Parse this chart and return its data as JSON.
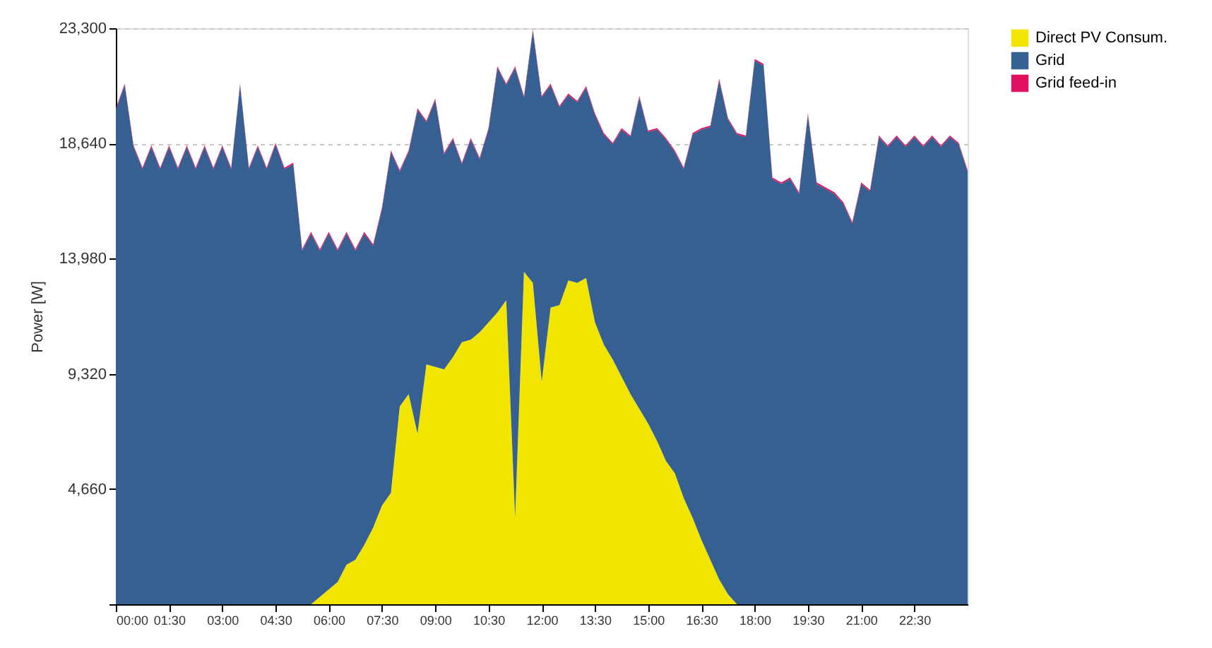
{
  "chart_data": {
    "type": "area",
    "stacked": true,
    "ylabel": "Power [W]",
    "x": [
      0,
      0.25,
      0.5,
      0.75,
      1,
      1.25,
      1.5,
      1.75,
      2,
      2.25,
      2.5,
      2.75,
      3,
      3.25,
      3.5,
      3.75,
      4,
      4.25,
      4.5,
      4.75,
      5,
      5.25,
      5.5,
      5.75,
      6,
      6.25,
      6.5,
      6.75,
      7,
      7.25,
      7.5,
      7.75,
      8,
      8.25,
      8.5,
      8.75,
      9,
      9.25,
      9.5,
      9.75,
      10,
      10.25,
      10.5,
      10.75,
      11,
      11.25,
      11.5,
      11.75,
      12,
      12.25,
      12.5,
      12.75,
      13,
      13.25,
      13.5,
      13.75,
      14,
      14.25,
      14.5,
      14.75,
      15,
      15.25,
      15.5,
      15.75,
      16,
      16.25,
      16.5,
      16.75,
      17,
      17.25,
      17.5,
      17.75,
      18,
      18.25,
      18.5,
      18.75,
      19,
      19.25,
      19.5,
      19.75,
      20,
      20.25,
      20.5,
      20.75,
      21,
      21.25,
      21.5,
      21.75,
      22,
      22.25,
      22.5,
      22.75,
      23,
      23.25,
      23.5,
      23.75,
      24
    ],
    "series": [
      {
        "name": "Direct PV Consum.",
        "color": "#f2e600",
        "values": [
          0,
          0,
          0,
          0,
          0,
          0,
          0,
          0,
          0,
          0,
          0,
          0,
          0,
          0,
          0,
          0,
          0,
          0,
          0,
          0,
          0,
          0,
          0,
          300,
          600,
          900,
          1600,
          1800,
          2400,
          3100,
          4000,
          4500,
          8000,
          8500,
          6900,
          9700,
          9600,
          9500,
          10000,
          10600,
          10700,
          11000,
          11400,
          11800,
          12300,
          3500,
          13450,
          13000,
          9000,
          12000,
          12100,
          13100,
          13000,
          13200,
          11400,
          10500,
          9900,
          9200,
          8500,
          7900,
          7300,
          6600,
          5800,
          5300,
          4300,
          3500,
          2600,
          1800,
          1000,
          400,
          0,
          0,
          0,
          0,
          0,
          0,
          0,
          0,
          0,
          0,
          0,
          0,
          0,
          0,
          0,
          0,
          0,
          0,
          0,
          0,
          0,
          0,
          0,
          0,
          0,
          0,
          0
        ]
      },
      {
        "name": "Grid",
        "color": "#376092",
        "values": [
          20000,
          21000,
          18500,
          17600,
          18500,
          17600,
          18500,
          17600,
          18500,
          17600,
          18500,
          17600,
          18500,
          17600,
          21000,
          17600,
          18500,
          17600,
          18600,
          17600,
          17800,
          14300,
          15000,
          14000,
          14400,
          13400,
          13400,
          12500,
          12600,
          11400,
          12000,
          13800,
          9500,
          9800,
          13100,
          9800,
          10800,
          8700,
          8800,
          7200,
          8100,
          7000,
          7800,
          9900,
          8700,
          18200,
          7050,
          10200,
          11500,
          9000,
          8000,
          7500,
          7300,
          7700,
          8400,
          8500,
          8700,
          10000,
          10400,
          12600,
          11800,
          12600,
          13000,
          13000,
          13300,
          15500,
          16600,
          17500,
          20200,
          19200,
          19000,
          18900,
          22000,
          21800,
          17200,
          17000,
          17200,
          16600,
          19800,
          17000,
          16800,
          16600,
          16200,
          15400,
          17000,
          16700,
          18900,
          18500,
          18900,
          18500,
          18900,
          18500,
          18900,
          18500,
          18900,
          18600,
          17500
        ]
      },
      {
        "name": "Grid feed-in",
        "color": "#e0115f",
        "values": [
          60,
          60,
          60,
          60,
          60,
          60,
          60,
          60,
          60,
          60,
          60,
          60,
          60,
          60,
          60,
          60,
          60,
          60,
          60,
          60,
          60,
          60,
          60,
          60,
          60,
          60,
          60,
          60,
          60,
          60,
          60,
          60,
          60,
          60,
          60,
          60,
          60,
          60,
          60,
          60,
          60,
          60,
          60,
          60,
          60,
          60,
          60,
          60,
          60,
          60,
          60,
          60,
          60,
          60,
          60,
          60,
          60,
          60,
          60,
          60,
          60,
          60,
          60,
          60,
          60,
          60,
          60,
          60,
          60,
          60,
          60,
          60,
          60,
          60,
          60,
          60,
          60,
          60,
          60,
          60,
          60,
          60,
          60,
          60,
          60,
          60,
          60,
          60,
          60,
          60,
          60,
          60,
          60,
          60,
          60,
          60,
          60
        ]
      }
    ],
    "xlim": [
      0,
      24
    ],
    "xticks": [
      {
        "value": 0,
        "label": "00:00"
      },
      {
        "value": 1.5,
        "label": "01:30"
      },
      {
        "value": 3,
        "label": "03:00"
      },
      {
        "value": 4.5,
        "label": "04:30"
      },
      {
        "value": 6,
        "label": "06:00"
      },
      {
        "value": 7.5,
        "label": "07:30"
      },
      {
        "value": 9,
        "label": "09:00"
      },
      {
        "value": 10.5,
        "label": "10:30"
      },
      {
        "value": 12,
        "label": "12:00"
      },
      {
        "value": 13.5,
        "label": "13:30"
      },
      {
        "value": 15,
        "label": "15:00"
      },
      {
        "value": 16.5,
        "label": "16:30"
      },
      {
        "value": 18,
        "label": "18:00"
      },
      {
        "value": 19.5,
        "label": "19:30"
      },
      {
        "value": 21,
        "label": "21:00"
      },
      {
        "value": 22.5,
        "label": "22:30"
      }
    ],
    "ylim": [
      0,
      23300
    ],
    "yticks": [
      {
        "value": 0,
        "label": null
      },
      {
        "value": 4660,
        "label": "4,660"
      },
      {
        "value": 9320,
        "label": "9,320"
      },
      {
        "value": 13980,
        "label": "13,980"
      },
      {
        "value": 18640,
        "label": "18,640"
      },
      {
        "value": 23300,
        "label": "23,300"
      }
    ],
    "grid": "y",
    "legend": "right"
  }
}
